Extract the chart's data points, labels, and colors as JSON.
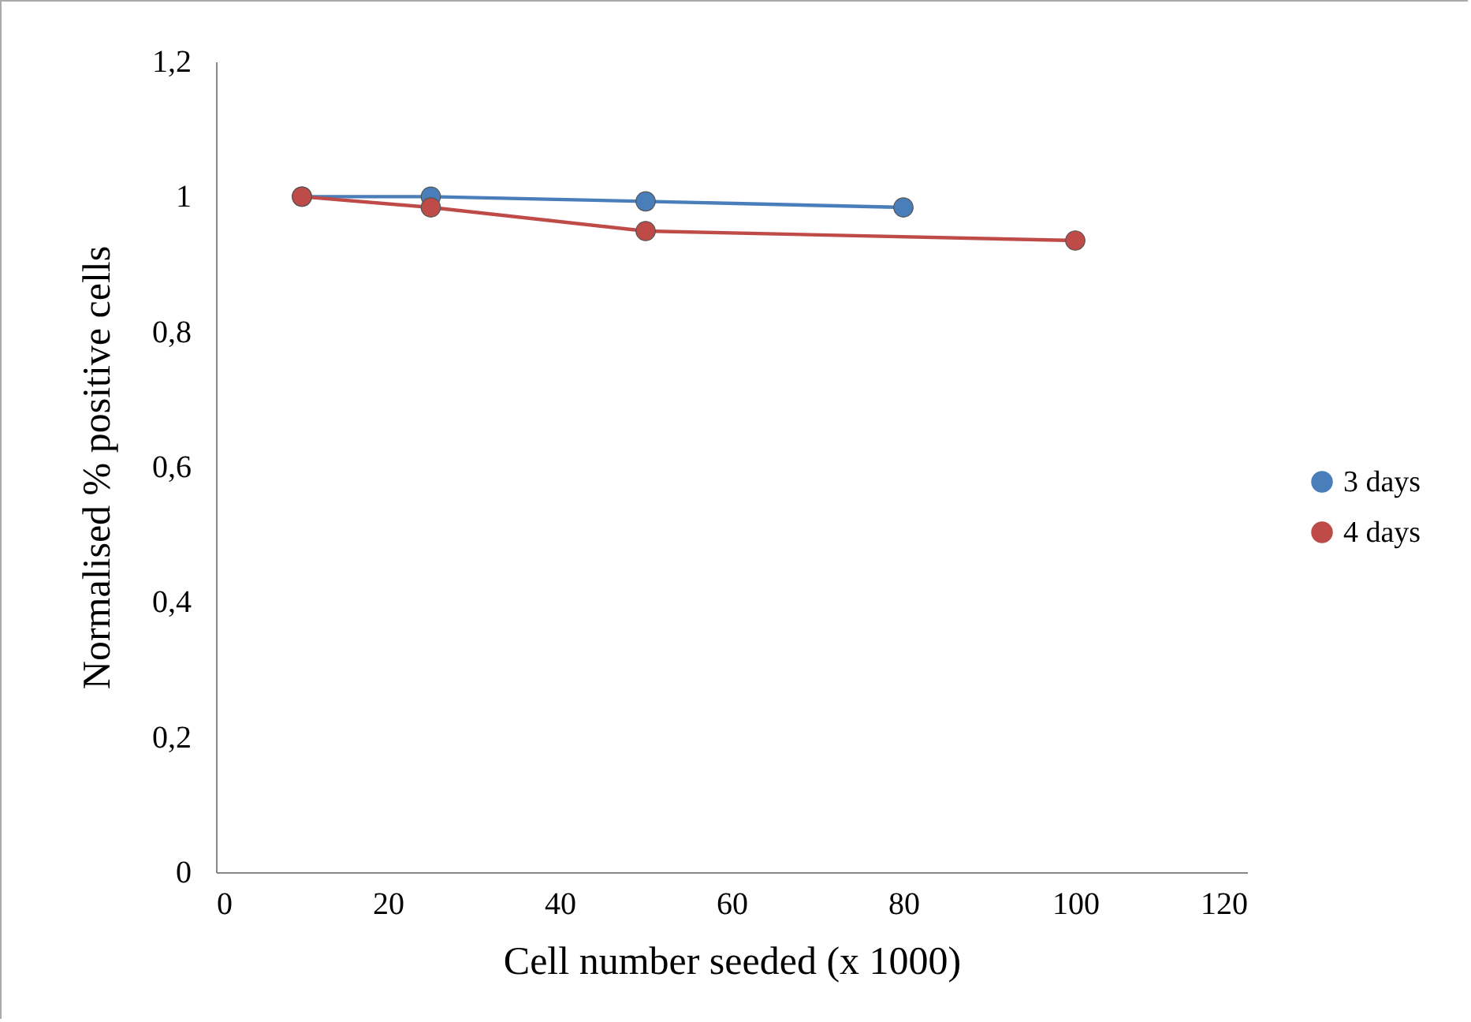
{
  "chart_data": {
    "type": "line",
    "xlabel": "Cell number seeded (x 1000)",
    "ylabel": "Normalised % positive cells",
    "xlim": [
      0,
      120
    ],
    "xticks": [
      0,
      20,
      40,
      60,
      80,
      100,
      120
    ],
    "ylim": [
      0,
      1.2
    ],
    "yticks": [
      0,
      {
        "value": 0.2,
        "label": "0,2"
      },
      {
        "value": 0.4,
        "label": "0,4"
      },
      {
        "value": 0.6,
        "label": "0,6"
      },
      {
        "value": 0.8,
        "label": "0,8"
      },
      1,
      {
        "value": 1.2,
        "label": "1,2"
      }
    ],
    "grid": false,
    "legend": "right",
    "marker": "circle",
    "line_style": "solid",
    "series": [
      {
        "name": "3 days",
        "color": "#4a7ebb",
        "x": [
          10,
          25,
          50,
          80
        ],
        "values": [
          1.0,
          1.0,
          0.993,
          0.984
        ]
      },
      {
        "name": "4 days",
        "color": "#be4b48",
        "x": [
          10,
          25,
          50,
          100
        ],
        "values": [
          1.0,
          0.984,
          0.949,
          0.935
        ]
      }
    ]
  }
}
